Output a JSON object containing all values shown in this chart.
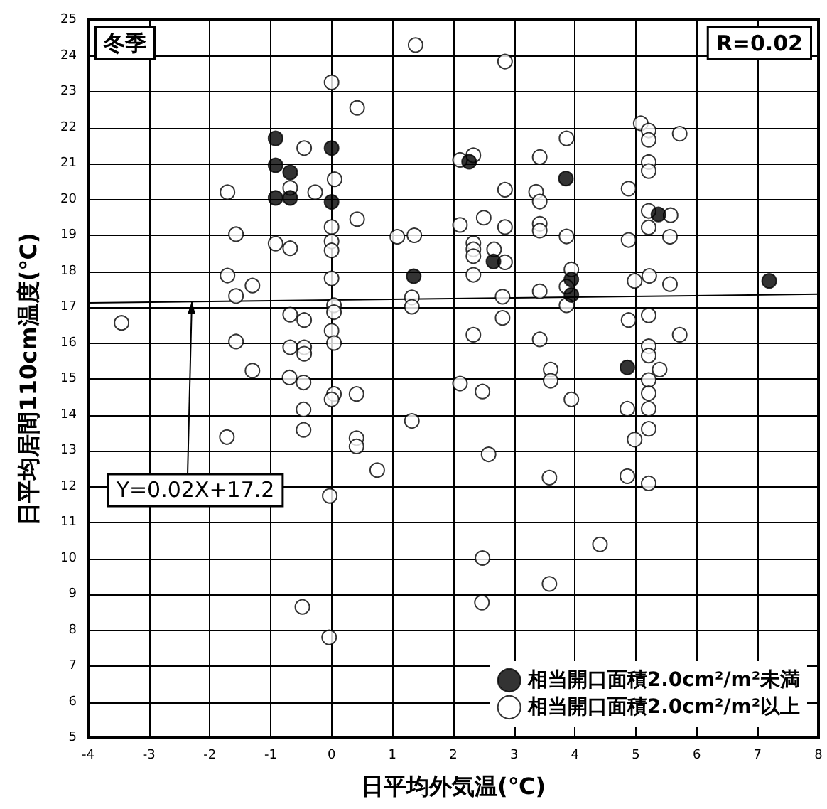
{
  "chart_data": {
    "type": "scatter",
    "xlabel": "日平均外気温(℃)",
    "ylabel": "日平均居間110cm温度(℃)",
    "xlim": [
      -4,
      8
    ],
    "xticks": [
      -4,
      -3,
      -2,
      -1,
      0,
      1,
      2,
      3,
      4,
      5,
      6,
      7,
      8
    ],
    "ylim": [
      5,
      25
    ],
    "yticks": [
      5,
      6,
      7,
      8,
      9,
      10,
      11,
      12,
      13,
      14,
      15,
      16,
      17,
      18,
      19,
      20,
      21,
      22,
      23,
      24,
      25
    ],
    "grid": true,
    "legend": "bottom right",
    "marker": "circle",
    "annotations": [
      "冬季",
      "R=0.02",
      {
        "text": "Y=0.02X+17.2",
        "x": -2.3,
        "y": 17.15
      }
    ],
    "series": [
      {
        "name": "相当開口面積2.0cm²/m²未満",
        "color": "#000000",
        "x": [
          -0.92,
          -0.92,
          -0.68,
          -0.92,
          -0.68,
          0,
          0,
          1.35,
          2.26,
          3.85,
          5.37,
          2.66,
          3.94,
          3.94,
          7.19,
          4.86
        ],
        "values": [
          21.7,
          20.95,
          20.75,
          20.04,
          20.04,
          21.43,
          19.93,
          17.86,
          21.05,
          20.58,
          19.58,
          18.27,
          17.77,
          17.34,
          17.73,
          15.32
        ]
      },
      {
        "name": "相当開口面積2.0cm²/m²以上",
        "color": "#ffffff",
        "x": [
          1.38,
          0,
          0.42,
          -0.45,
          0.05,
          -0.68,
          -0.27,
          -1.71,
          0.42,
          -1.57,
          -0.92,
          -0.68,
          0,
          0,
          0,
          1.08,
          1.36,
          0,
          -1.71,
          -1.3,
          -1.57,
          1.32,
          1.32,
          0.04,
          0.04,
          -3.45,
          -0.68,
          -0.45,
          0,
          0.04,
          -1.57,
          -0.68,
          -0.45,
          -0.45,
          -1.3,
          -0.69,
          -0.46,
          0.04,
          0,
          0.41,
          -0.46,
          1.32,
          -1.72,
          -0.46,
          0.41,
          0.41,
          0.75,
          -0.03,
          -0.48,
          -0.04,
          2.85,
          5.08,
          5.21,
          5.21,
          5.72,
          3.86,
          2.33,
          2.11,
          3.42,
          5.21,
          5.21,
          2.85,
          3.36,
          4.88,
          3.42,
          5.21,
          5.57,
          2.5,
          2.11,
          2.85,
          3.42,
          3.42,
          5.21,
          3.86,
          5.56,
          4.88,
          2.33,
          2.33,
          2.33,
          2.67,
          2.85,
          2.33,
          3.94,
          3.86,
          4.98,
          5.22,
          5.56,
          3.42,
          2.81,
          3.86,
          2.81,
          4.88,
          5.21,
          5.72,
          2.33,
          3.42,
          5.21,
          5.21,
          3.6,
          5.39,
          5.21,
          3.6,
          2.11,
          2.48,
          5.21,
          3.94,
          4.86,
          5.21,
          5.21,
          4.98,
          2.58,
          3.58,
          4.86,
          5.21,
          4.41,
          2.48,
          3.58,
          2.47
        ],
        "values": [
          24.3,
          23.26,
          22.55,
          21.43,
          20.56,
          20.32,
          20.2,
          20.2,
          19.45,
          19.03,
          18.77,
          18.64,
          19.23,
          18.83,
          18.58,
          18.96,
          19.0,
          17.8,
          17.88,
          17.6,
          17.31,
          17.27,
          17.01,
          17.05,
          16.86,
          16.56,
          16.79,
          16.64,
          16.34,
          16.0,
          16.04,
          15.88,
          15.88,
          15.7,
          15.23,
          15.04,
          14.9,
          14.58,
          14.43,
          14.58,
          14.15,
          13.83,
          13.38,
          13.58,
          13.35,
          13.12,
          12.46,
          11.74,
          8.65,
          7.8,
          23.84,
          22.12,
          21.92,
          21.66,
          21.83,
          21.7,
          21.23,
          21.1,
          21.18,
          21.04,
          20.79,
          20.27,
          20.21,
          20.3,
          19.94,
          19.68,
          19.56,
          19.49,
          19.29,
          19.23,
          19.32,
          19.13,
          19.22,
          18.97,
          18.96,
          18.87,
          18.78,
          18.61,
          18.42,
          18.61,
          18.25,
          17.9,
          18.05,
          17.57,
          17.73,
          17.87,
          17.64,
          17.44,
          17.29,
          17.05,
          16.7,
          16.64,
          16.77,
          16.23,
          16.23,
          16.1,
          15.91,
          15.65,
          15.26,
          15.26,
          14.97,
          14.95,
          14.87,
          14.65,
          14.6,
          14.43,
          14.17,
          14.17,
          13.61,
          13.31,
          12.9,
          12.25,
          12.29,
          12.09,
          10.39,
          10.01,
          9.29,
          8.77
        ]
      },
      {
        "type": "line",
        "marker": "none",
        "color": "#000000",
        "x": [
          -4,
          8
        ],
        "values": [
          17.12,
          17.36
        ]
      }
    ]
  }
}
